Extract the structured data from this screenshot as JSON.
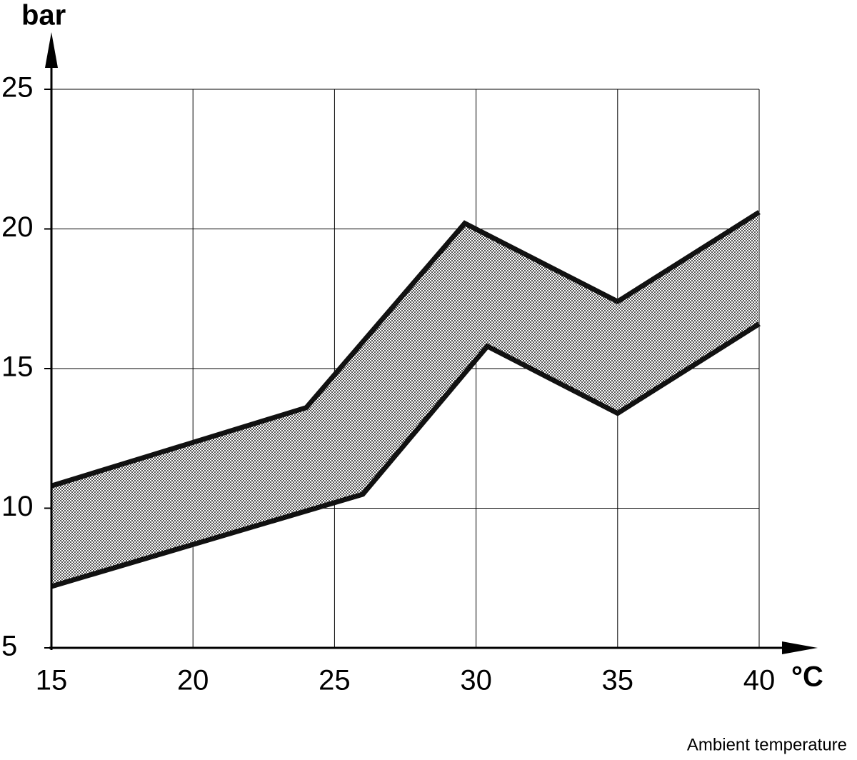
{
  "chart_data": {
    "type": "band",
    "y_label": "bar",
    "x_unit": "°C",
    "x_label": "Ambient temperature",
    "series": [
      {
        "color": "#111111",
        "x": [
          15,
          24,
          29.6,
          35,
          40
        ],
        "values": [
          10.8,
          13.6,
          20.2,
          17.4,
          20.6
        ]
      },
      {
        "color": "#111111",
        "x": [
          15,
          26,
          30.4,
          35,
          40
        ],
        "values": [
          7.2,
          10.5,
          15.8,
          13.4,
          16.6
        ]
      }
    ],
    "fill_color": "#8a8a8a",
    "xlim": [
      15,
      40
    ],
    "xticks": [
      15,
      20,
      25,
      30,
      35,
      40
    ],
    "ylim": [
      5,
      25
    ],
    "yticks": [
      5,
      10,
      15,
      20,
      25
    ],
    "grid": true
  }
}
